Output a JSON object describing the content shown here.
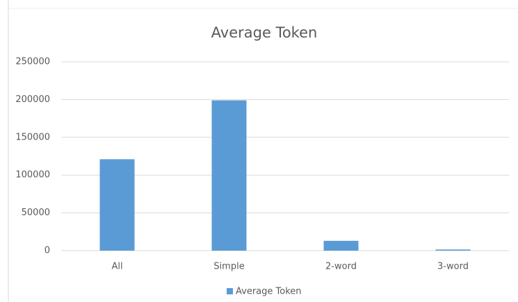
{
  "chart_data": {
    "type": "bar",
    "title": "Average Token",
    "categories": [
      "All",
      "Simple",
      "2-word",
      "3-word"
    ],
    "series": [
      {
        "name": "Average Token",
        "color": "#5b9bd5",
        "values": [
          121000,
          199000,
          13000,
          1500
        ]
      }
    ],
    "ylim": [
      0,
      250000
    ],
    "yticks": [
      0,
      50000,
      100000,
      150000,
      200000,
      250000
    ],
    "grid": true,
    "legend": "bottom"
  }
}
